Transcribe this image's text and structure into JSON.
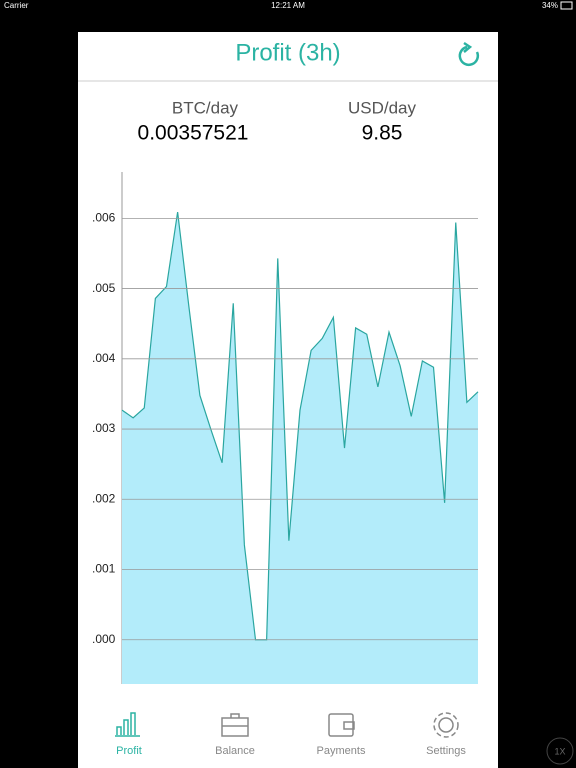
{
  "status_bar": {
    "carrier": "Carrier",
    "time": "12:21 AM",
    "battery": "34%"
  },
  "header": {
    "title": "Profit (3h)"
  },
  "stats": [
    {
      "label": "BTC/day",
      "value": "0.00357521"
    },
    {
      "label": "USD/day",
      "value": "9.85"
    }
  ],
  "chart_data": {
    "type": "area",
    "categories": [
      null,
      null,
      null,
      null,
      null,
      null,
      null,
      null,
      null,
      null,
      null,
      null,
      null,
      null,
      null,
      null,
      null,
      null,
      null,
      null,
      null,
      null,
      null,
      null,
      null,
      null,
      null,
      null,
      null,
      null,
      null,
      null,
      null
    ],
    "series": [
      {
        "color": "#2aa6a0",
        "fill": "#b3ecfa",
        "values": [
          0.00327,
          0.00316,
          0.0033,
          0.00486,
          0.00503,
          0.00609,
          0.00476,
          0.00348,
          0.00299,
          0.00252,
          0.00479,
          0.00135,
          0,
          0,
          0.00543,
          0.00141,
          0.00327,
          0.00412,
          0.00429,
          0.00459,
          0.00273,
          0.00444,
          0.00435,
          0.0036,
          0.00438,
          0.0039,
          0.00318,
          0.00397,
          0.00388,
          0.00195,
          0.00594,
          0.00338,
          0.00353
        ]
      }
    ],
    "ylim": [
      -0.00063,
      0.00666
    ],
    "yticks": [
      {
        "value": 0,
        "label": ".000"
      },
      {
        "value": 0.001,
        "label": ".001"
      },
      {
        "value": 0.002,
        "label": ".002"
      },
      {
        "value": 0.003,
        "label": ".003"
      },
      {
        "value": 0.004,
        "label": ".004"
      },
      {
        "value": 0.005,
        "label": ".005"
      },
      {
        "value": 0.006,
        "label": ".006"
      }
    ],
    "grid": true
  },
  "tabs": [
    {
      "label": "Profit",
      "active": true
    },
    {
      "label": "Balance",
      "active": false
    },
    {
      "label": "Payments",
      "active": false
    },
    {
      "label": "Settings",
      "active": false
    }
  ],
  "zoom_badge": "1X"
}
